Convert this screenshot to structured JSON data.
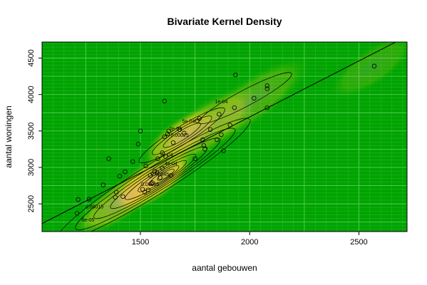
{
  "chart_data": {
    "type": "scatter",
    "title": "Bivariate Kernel Density",
    "xlabel": "aantal gebouwen",
    "ylabel": "aantal woningen",
    "xlim": [
      1050,
      2720
    ],
    "ylim": [
      2120,
      4720
    ],
    "xticks": [
      1500,
      2000,
      2500
    ],
    "yticks": [
      2500,
      3000,
      3500,
      4000,
      4500
    ],
    "grid": true,
    "legend": "none",
    "colors": {
      "plot_background": "#00a300",
      "grid": "#5ed45e",
      "points": "#000000",
      "line": "#000000"
    },
    "regression_line": {
      "x": [
        1050,
        2720
      ],
      "y": [
        2230,
        4800
      ]
    },
    "contour_labels": [
      "1e-04",
      "5e-04",
      "0.00015",
      "5e-05",
      "2e-04",
      "4e-04",
      "3e-04",
      "0.00025",
      "0.00035",
      "0.00045"
    ],
    "series": [
      {
        "points": [
          [
            1210,
            2370
          ],
          [
            1215,
            2560
          ],
          [
            1265,
            2565
          ],
          [
            1330,
            2760
          ],
          [
            1355,
            3120
          ],
          [
            1385,
            2590
          ],
          [
            1390,
            2660
          ],
          [
            1405,
            2880
          ],
          [
            1420,
            2600
          ],
          [
            1430,
            2940
          ],
          [
            1465,
            3080
          ],
          [
            1490,
            3320
          ],
          [
            1500,
            3500
          ],
          [
            1510,
            2700
          ],
          [
            1520,
            2660
          ],
          [
            1525,
            3020
          ],
          [
            1535,
            2690
          ],
          [
            1545,
            2890
          ],
          [
            1550,
            2780
          ],
          [
            1555,
            2790
          ],
          [
            1565,
            2950
          ],
          [
            1575,
            2930
          ],
          [
            1580,
            3120
          ],
          [
            1590,
            2860
          ],
          [
            1600,
            3200
          ],
          [
            1600,
            2990
          ],
          [
            1610,
            3910
          ],
          [
            1610,
            3420
          ],
          [
            1615,
            3150
          ],
          [
            1625,
            3460
          ],
          [
            1630,
            3500
          ],
          [
            1640,
            2890
          ],
          [
            1650,
            3340
          ],
          [
            1680,
            3520
          ],
          [
            1700,
            3470
          ],
          [
            1750,
            3120
          ],
          [
            1760,
            3640
          ],
          [
            1770,
            3670
          ],
          [
            1785,
            3380
          ],
          [
            1790,
            3300
          ],
          [
            1795,
            3250
          ],
          [
            1820,
            3520
          ],
          [
            1850,
            3380
          ],
          [
            1860,
            3730
          ],
          [
            1870,
            3450
          ],
          [
            1880,
            3230
          ],
          [
            1910,
            3580
          ],
          [
            1930,
            3820
          ],
          [
            1935,
            4270
          ],
          [
            2020,
            3950
          ],
          [
            2080,
            4080
          ],
          [
            2080,
            4120
          ],
          [
            2080,
            3820
          ],
          [
            2570,
            4390
          ]
        ]
      }
    ]
  }
}
